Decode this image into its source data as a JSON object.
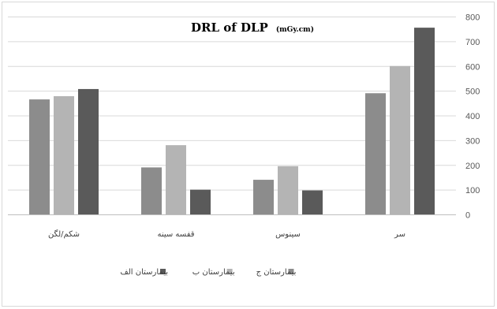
{
  "chart_data": {
    "type": "bar",
    "title": "DRL of DLP",
    "title_unit": "(mGy.cm)",
    "categories": [
      "شکم/لگن",
      "قفسه سینه",
      "سینوس",
      "سر"
    ],
    "series": [
      {
        "name": "بیمارستان ج",
        "color": "#8c8c8c",
        "values": [
          465,
          190,
          140,
          490
        ]
      },
      {
        "name": "بیمارستان ب",
        "color": "#b4b4b4",
        "values": [
          478,
          280,
          195,
          600
        ]
      },
      {
        "name": "بیمارستان الف",
        "color": "#5a5a5a",
        "values": [
          507,
          100,
          97,
          755
        ]
      }
    ],
    "y_ticks": [
      "0",
      "100",
      "200",
      "300",
      "400",
      "500",
      "600",
      "700",
      "800"
    ],
    "ylim": [
      0,
      800
    ],
    "y_axis_side": "right",
    "grid": true,
    "legend_position": "bottom",
    "legend_order": [
      "بیمارستان الف",
      "بیمارستان ب",
      "بیمارستان ج"
    ]
  }
}
